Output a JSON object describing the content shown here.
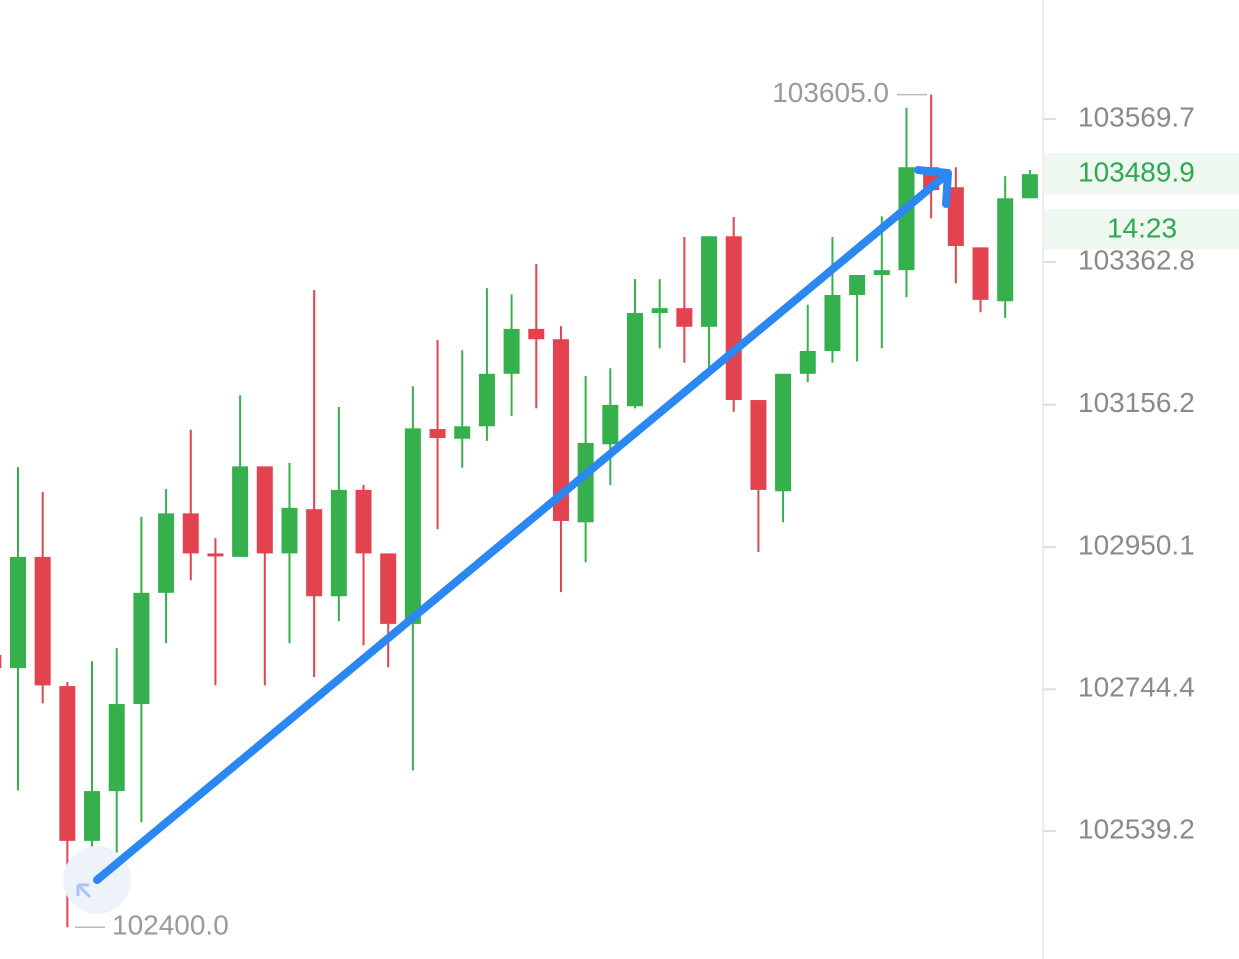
{
  "chart_data": {
    "type": "candlestick",
    "open": [
      102794,
      102775,
      102936,
      102749,
      102525,
      102597,
      102723,
      102884,
      102999,
      102941,
      102936,
      103067,
      102941,
      103005,
      102879,
      103033,
      102941,
      102839,
      103121,
      103107,
      103125,
      103201,
      103266,
      103251,
      102986,
      103099,
      103154,
      103289,
      103296,
      103269,
      103400,
      103163,
      103031,
      103201,
      103234,
      103315,
      103344,
      103351,
      103500,
      103471,
      103384,
      103306,
      103455
    ],
    "high": [
      102794,
      103066,
      103030,
      102755,
      102785,
      102804,
      102994,
      103034,
      103120,
      102963,
      103170,
      103067,
      103072,
      103322,
      103153,
      103040,
      102941,
      103183,
      103250,
      103235,
      103325,
      103316,
      103360,
      103270,
      103198,
      103209,
      103338,
      103338,
      103399,
      103400,
      103428,
      103163,
      103201,
      103301,
      103399,
      103344,
      103429,
      103586,
      103605,
      103500,
      103384,
      103487,
      103496
    ],
    "low": [
      102775,
      102598,
      102724,
      102400,
      102425,
      102456,
      102552,
      102811,
      102902,
      102750,
      102936,
      102750,
      102811,
      102762,
      102843,
      102808,
      102776,
      102627,
      102976,
      103065,
      103104,
      103140,
      103151,
      102885,
      102928,
      103040,
      103151,
      103238,
      103217,
      103204,
      103146,
      102943,
      102986,
      103189,
      103217,
      103219,
      103238,
      103312,
      103426,
      103332,
      103290,
      103282,
      103455
    ],
    "close": [
      102775,
      102936,
      102750,
      102525,
      102597,
      102723,
      102884,
      102999,
      102941,
      102937,
      103067,
      102941,
      103007,
      102879,
      103033,
      102941,
      102839,
      103122,
      103108,
      103125,
      103201,
      103266,
      103251,
      102988,
      103101,
      103156,
      103289,
      103296,
      103269,
      103400,
      103163,
      103033,
      103201,
      103234,
      103315,
      103344,
      103351,
      103500,
      103467,
      103386,
      103308,
      103455,
      103489.9
    ],
    "up_color": "#35b04c",
    "down_color": "#e2434f",
    "ylim": [
      102354,
      103742
    ],
    "yticks": [
      103569.7,
      103362.8,
      103156.2,
      102950.1,
      102744.4,
      102539.2
    ],
    "annotations": [
      {
        "value": 103605,
        "label": "103605.0"
      },
      {
        "value": 102400,
        "label": "102400.0"
      }
    ],
    "last_price": 103489.9,
    "countdown": "14:23"
  }
}
